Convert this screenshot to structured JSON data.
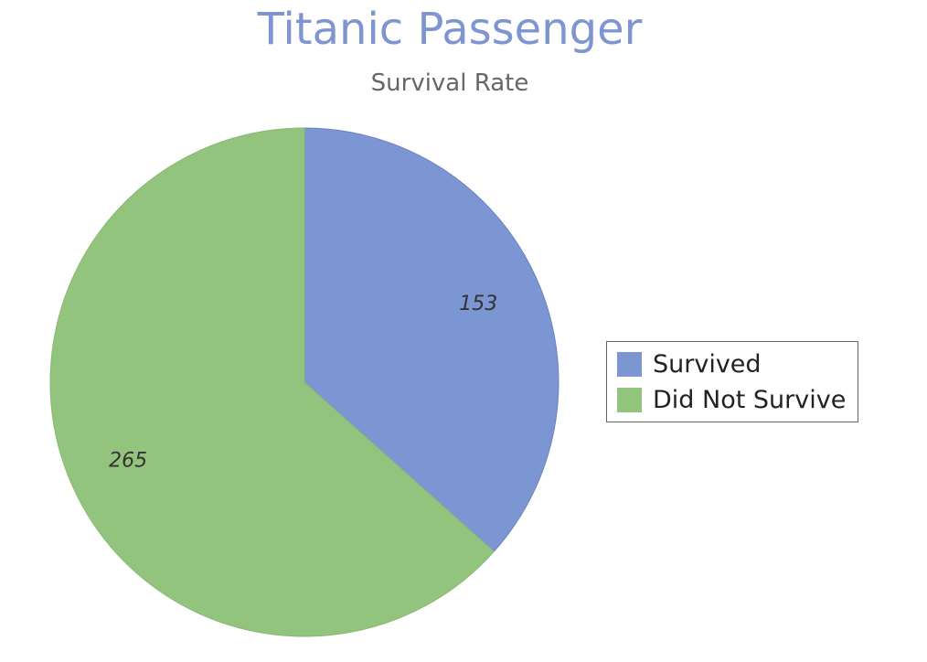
{
  "chart_data": {
    "type": "pie",
    "title": "Titanic Passenger",
    "subtitle": "Survival Rate",
    "categories": [
      "Survived",
      "Did Not Survive"
    ],
    "values": [
      153,
      265
    ],
    "colors": [
      "#7b96d2",
      "#93c47d"
    ],
    "data_labels": [
      "153",
      "265"
    ],
    "legend_position": "right"
  }
}
